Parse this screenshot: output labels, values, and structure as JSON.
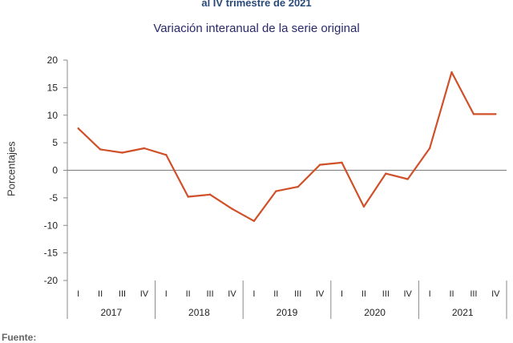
{
  "header": {
    "title_partial": "al IV trimestre de 2021",
    "subtitle": "Variación interanual de la serie original"
  },
  "footer": {
    "source_label": "Fuente:"
  },
  "colors": {
    "line": "#d0502a",
    "axis": "#888888",
    "zero_line": "#888888"
  },
  "chart_data": {
    "type": "line",
    "title": "Variación interanual de la serie original",
    "ylabel": "Porcentajes",
    "xlabel": "",
    "ylim": [
      -20,
      20
    ],
    "yticks": [
      20,
      15,
      10,
      5,
      0,
      -5,
      -10,
      -15,
      -20
    ],
    "grid": false,
    "years": [
      "2017",
      "2018",
      "2019",
      "2020",
      "2021"
    ],
    "quarters": [
      "I",
      "II",
      "III",
      "IV"
    ],
    "categories": [
      "2017 I",
      "2017 II",
      "2017 III",
      "2017 IV",
      "2018 I",
      "2018 II",
      "2018 III",
      "2018 IV",
      "2019 I",
      "2019 II",
      "2019 III",
      "2019 IV",
      "2020 I",
      "2020 II",
      "2020 III",
      "2020 IV",
      "2021 I",
      "2021 II",
      "2021 III",
      "2021 IV"
    ],
    "series": [
      {
        "values": [
          7.6,
          3.8,
          3.2,
          4.0,
          2.8,
          -4.8,
          -4.4,
          -7.0,
          -9.2,
          -3.8,
          -3.0,
          1.0,
          1.4,
          -6.6,
          -0.6,
          -1.6,
          4.0,
          17.8,
          10.2,
          10.2
        ]
      }
    ]
  }
}
